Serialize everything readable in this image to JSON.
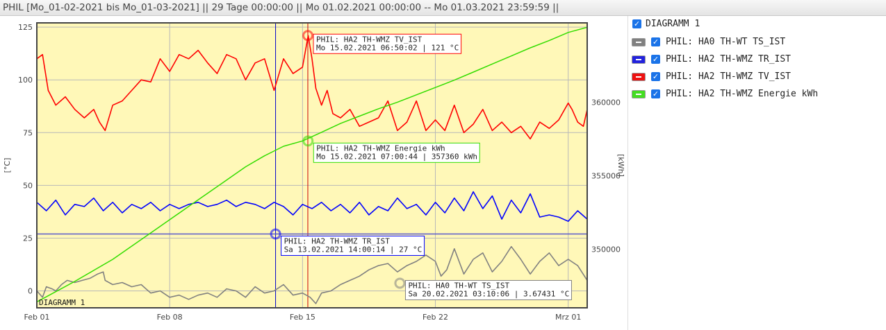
{
  "window": {
    "title": "PHIL [Mo_01-02-2021 bis Mo_01-03-2021] || 29 Tage 00:00:00 || Mo 01.02.2021 00:00:00 -- Mo 01.03.2021 23:59:59 ||"
  },
  "legend": {
    "header": "DIAGRAMM 1",
    "items": [
      {
        "label": "PHIL: HA0 TH-WT TS_IST",
        "color": "#808080",
        "checked": true
      },
      {
        "label": "PHIL: HA2 TH-WMZ TR_IST",
        "color": "#0000ff",
        "checked": true
      },
      {
        "label": "PHIL: HA2 TH-WMZ TV_IST",
        "color": "#ff0000",
        "checked": true
      },
      {
        "label": "PHIL: HA2 TH-WMZ Energie kWh",
        "color": "#33dd00",
        "checked": true
      }
    ]
  },
  "chart_data": {
    "type": "line",
    "title": "",
    "corner_label": "DIAGRAMM 1",
    "xlabel": "",
    "ylabel_left": "[°C]",
    "ylabel_right": "[kWh]",
    "x_ticks": [
      "Feb 01",
      "Feb 08",
      "Feb 15",
      "Feb 22",
      "Mrz 01"
    ],
    "x_tick_days": [
      0,
      7,
      14,
      21,
      28
    ],
    "xlim_days": [
      0,
      29
    ],
    "ylim_left": [
      -8,
      127
    ],
    "y_ticks_left": [
      0,
      25,
      50,
      75,
      100,
      125
    ],
    "ylim_right": [
      346000,
      365400
    ],
    "y_ticks_right": [
      350000,
      355000,
      360000
    ],
    "grid": true,
    "background": "#fff8b8",
    "series": [
      {
        "name": "PHIL: HA0 TH-WT TS_IST",
        "axis": "left",
        "color": "#808080",
        "x": [
          0,
          0.3,
          0.5,
          0.8,
          1,
          1.3,
          1.6,
          2,
          2.4,
          2.8,
          3.2,
          3.5,
          3.6,
          4,
          4.5,
          5,
          5.5,
          6,
          6.5,
          7,
          7.5,
          8,
          8.5,
          9,
          9.5,
          10,
          10.5,
          11,
          11.5,
          12,
          12.5,
          13,
          13.5,
          14,
          14.4,
          14.7,
          15,
          15.5,
          16,
          16.5,
          17,
          17.5,
          18,
          18.5,
          19,
          19.5,
          20,
          20.5,
          21,
          21.3,
          21.6,
          22,
          22.5,
          23,
          23.5,
          24,
          24.5,
          25,
          25.5,
          26,
          26.5,
          27,
          27.5,
          28,
          28.5,
          29
        ],
        "y": [
          0,
          -3,
          2,
          1,
          0,
          3,
          5,
          4,
          5,
          6,
          8,
          9,
          5,
          3,
          4,
          2,
          3,
          -1,
          0,
          -3,
          -2,
          -4,
          -2,
          -1,
          -3,
          1,
          0,
          -3,
          2,
          -1,
          0,
          3,
          -2,
          -1,
          -3,
          -6,
          -1,
          0,
          3,
          5,
          7,
          10,
          12,
          13,
          9,
          12,
          14,
          17,
          14,
          7,
          10,
          20,
          8,
          15,
          18,
          9,
          14,
          21,
          15,
          8,
          14,
          18,
          12,
          15,
          12,
          5
        ],
        "cursor": {
          "x": 19.13,
          "y": 3.67431,
          "label": [
            "PHIL: HA0 TH-WT TS_IST",
            "Sa 20.02.2021 03:10:06 | 3.67431 °C"
          ]
        }
      },
      {
        "name": "PHIL: HA2 TH-WMZ TR_IST",
        "axis": "left",
        "color": "#0000ff",
        "x": [
          0,
          0.5,
          1,
          1.5,
          2,
          2.5,
          3,
          3.5,
          4,
          4.5,
          5,
          5.5,
          6,
          6.5,
          7,
          7.5,
          8,
          8.5,
          9,
          9.5,
          10,
          10.5,
          11,
          11.5,
          12,
          12.5,
          13,
          13.5,
          14,
          14.5,
          15,
          15.5,
          16,
          16.5,
          17,
          17.5,
          18,
          18.5,
          19,
          19.5,
          20,
          20.5,
          21,
          21.5,
          22,
          22.5,
          23,
          23.5,
          24,
          24.5,
          25,
          25.5,
          26,
          26.5,
          27,
          27.5,
          28,
          28.5,
          29
        ],
        "y": [
          42,
          38,
          43,
          36,
          41,
          40,
          44,
          38,
          42,
          37,
          41,
          39,
          42,
          38,
          41,
          39,
          41,
          42,
          40,
          41,
          43,
          40,
          42,
          41,
          39,
          42,
          40,
          36,
          41,
          39,
          42,
          38,
          41,
          37,
          42,
          36,
          40,
          38,
          44,
          39,
          41,
          36,
          42,
          37,
          44,
          38,
          47,
          39,
          45,
          34,
          43,
          37,
          46,
          35,
          36,
          35,
          33,
          38,
          34
        ],
        "cursor": {
          "x": 12.58,
          "y": 27,
          "label": [
            "PHIL: HA2 TH-WMZ TR_IST",
            "Sa 13.02.2021 14:00:14 | 27 °C"
          ]
        }
      },
      {
        "name": "PHIL: HA2 TH-WMZ TV_IST",
        "axis": "left",
        "color": "#ff0000",
        "x": [
          0,
          0.3,
          0.6,
          1,
          1.5,
          2,
          2.5,
          3,
          3.3,
          3.6,
          4,
          4.5,
          5,
          5.5,
          6,
          6.5,
          7,
          7.5,
          8,
          8.5,
          9,
          9.5,
          10,
          10.5,
          11,
          11.5,
          12,
          12.5,
          13,
          13.5,
          14,
          14.3,
          14.5,
          14.7,
          15,
          15.3,
          15.6,
          16,
          16.5,
          17,
          17.5,
          18,
          18.5,
          19,
          19.5,
          20,
          20.5,
          21,
          21.5,
          22,
          22.5,
          23,
          23.5,
          24,
          24.5,
          25,
          25.5,
          26,
          26.5,
          27,
          27.5,
          28,
          28.2,
          28.5,
          28.8,
          29
        ],
        "y": [
          110,
          112,
          95,
          88,
          92,
          86,
          82,
          86,
          80,
          76,
          88,
          90,
          95,
          100,
          99,
          110,
          104,
          112,
          110,
          114,
          108,
          103,
          112,
          110,
          100,
          108,
          110,
          95,
          110,
          103,
          106,
          121,
          110,
          96,
          88,
          95,
          84,
          82,
          86,
          78,
          80,
          82,
          90,
          76,
          80,
          90,
          76,
          81,
          76,
          88,
          75,
          79,
          86,
          76,
          80,
          75,
          78,
          72,
          80,
          77,
          81,
          89,
          86,
          80,
          78,
          86
        ],
        "cursor": {
          "x": 14.28,
          "y": 121,
          "label": [
            "PHIL: HA2 TH-WMZ TV_IST",
            "Mo 15.02.2021 06:50:02 | 121 °C"
          ]
        }
      },
      {
        "name": "PHIL: HA2 TH-WMZ Energie kWh",
        "axis": "right",
        "color": "#33dd00",
        "x": [
          0,
          1,
          2,
          3,
          4,
          5,
          6,
          7,
          8,
          9,
          10,
          11,
          12,
          13,
          14,
          15,
          16,
          17,
          18,
          19,
          20,
          21,
          22,
          23,
          24,
          25,
          26,
          27,
          28,
          29
        ],
        "y": [
          346400,
          347100,
          347800,
          348550,
          349300,
          350200,
          351100,
          352000,
          352900,
          353800,
          354700,
          355600,
          356350,
          357000,
          357360,
          357950,
          358550,
          359050,
          359550,
          360000,
          360500,
          361000,
          361500,
          362050,
          362600,
          363150,
          363700,
          364200,
          364750,
          365100
        ],
        "cursor": {
          "x": 14.29,
          "y": 357360,
          "label": [
            "PHIL: HA2 TH-WMZ Energie kWh",
            "Mo 15.02.2021 07:00:44 | 357360 kWh"
          ]
        }
      }
    ],
    "markers": [
      {
        "type": "vline",
        "x": 12.58,
        "color": "#0000cc"
      },
      {
        "type": "vline",
        "x": 14.28,
        "color": "#cc0000"
      },
      {
        "type": "hline",
        "y": 27,
        "axis": "left",
        "color": "#5555cc"
      }
    ]
  }
}
